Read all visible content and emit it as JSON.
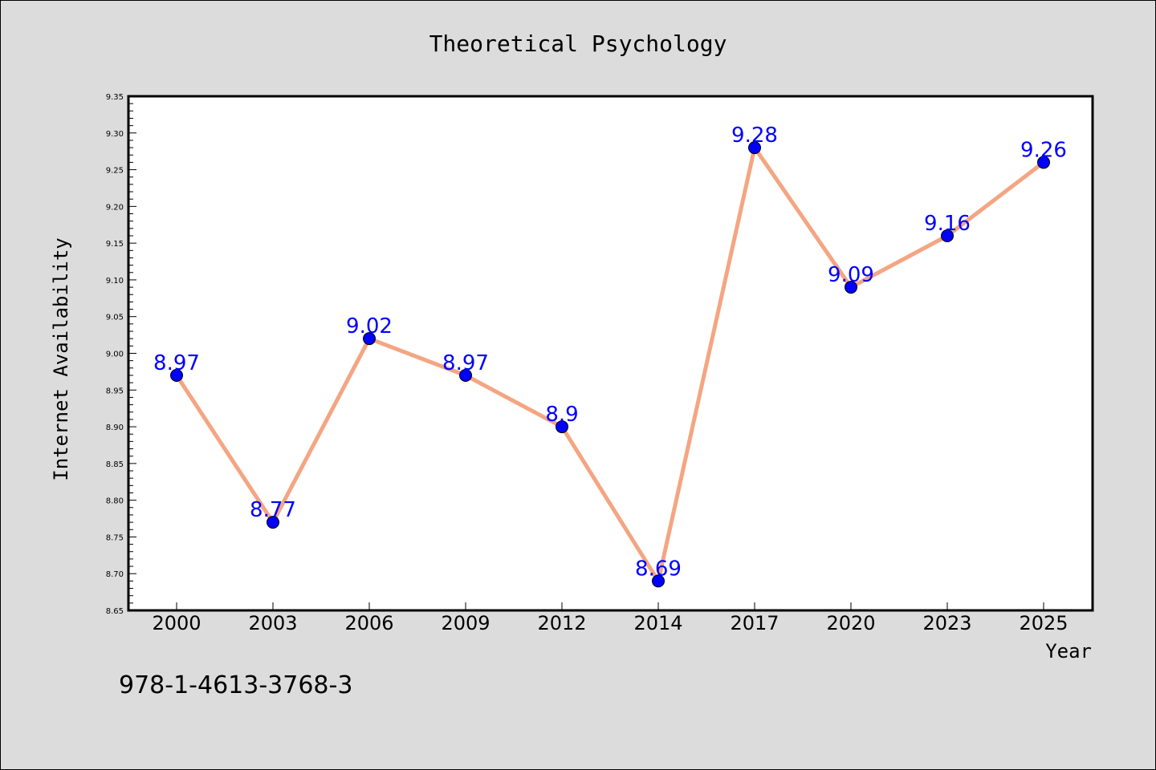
{
  "chart_data": {
    "type": "line",
    "title": "Theoretical Psychology",
    "xlabel": "Year",
    "ylabel": "Internet Availability",
    "categories": [
      "2000",
      "2003",
      "2006",
      "2009",
      "2012",
      "2014",
      "2017",
      "2020",
      "2023",
      "2025"
    ],
    "values": [
      8.97,
      8.77,
      9.02,
      8.97,
      8.9,
      8.69,
      9.28,
      9.09,
      9.16,
      9.26
    ],
    "data_labels": [
      "8.97",
      "8.77",
      "9.02",
      "8.97",
      "8.9",
      "8.69",
      "9.28",
      "9.09",
      "9.16",
      "9.26"
    ],
    "ylim": [
      8.65,
      9.35
    ],
    "yticks": [
      "8.65",
      "8.70",
      "8.75",
      "8.80",
      "8.85",
      "8.90",
      "8.95",
      "9.00",
      "9.05",
      "9.10",
      "9.15",
      "9.20",
      "9.25",
      "9.30",
      "9.35"
    ],
    "grid": false,
    "legend": "none",
    "colors": {
      "line": "#f4a582",
      "marker": "#0000ff",
      "label": "#0000ff",
      "background": "#dcdcdc",
      "plot_background": "#ffffff"
    }
  },
  "footer": {
    "isbn": "978-1-4613-3768-3"
  }
}
